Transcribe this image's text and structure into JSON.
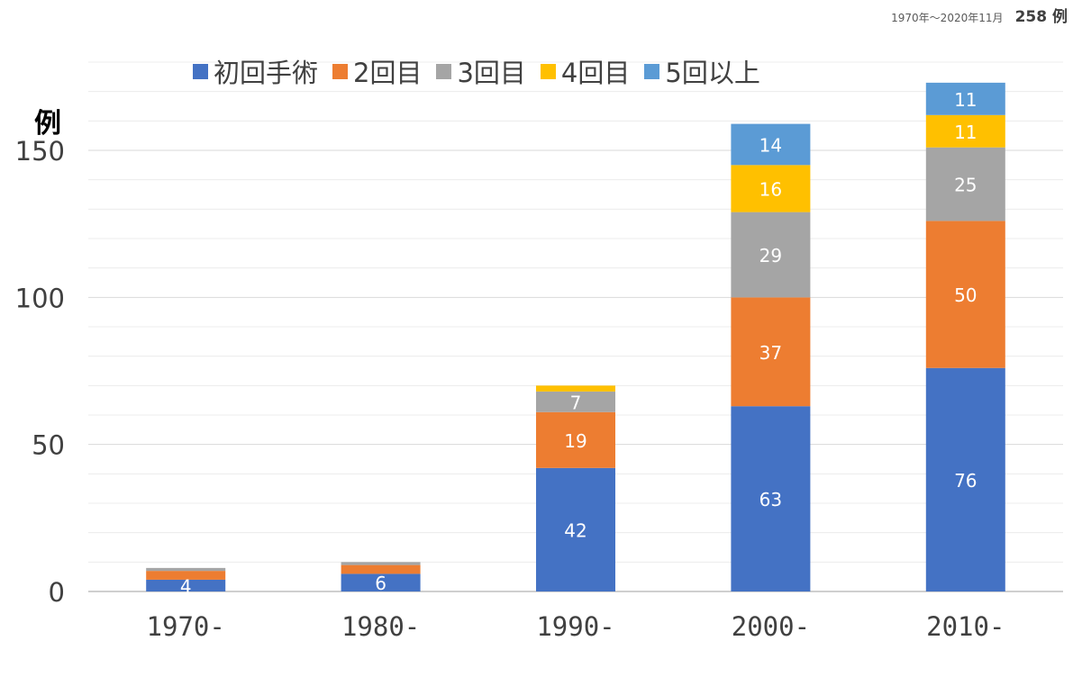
{
  "header": {
    "range": "1970年〜2020年11月",
    "total": "258 例"
  },
  "chart_data": {
    "type": "bar",
    "stacked": true,
    "categories": [
      "1970-",
      "1980-",
      "1990-",
      "2000-",
      "2010-"
    ],
    "series": [
      {
        "name": "初回手術",
        "color": "#4472C4",
        "values": [
          4,
          6,
          42,
          63,
          76
        ]
      },
      {
        "name": "2回目",
        "color": "#ED7D31",
        "values": [
          3,
          3,
          19,
          37,
          50
        ]
      },
      {
        "name": "3回目",
        "color": "#A5A5A5",
        "values": [
          1,
          1,
          7,
          29,
          25
        ]
      },
      {
        "name": "4回目",
        "color": "#FFC000",
        "values": [
          0,
          0,
          2,
          16,
          11
        ]
      },
      {
        "name": "5回以上",
        "color": "#5B9BD5",
        "values": [
          0,
          0,
          0,
          14,
          11
        ]
      }
    ],
    "data_labels": [
      [
        "4",
        "",
        "",
        "",
        ""
      ],
      [
        "6",
        "",
        "",
        "",
        ""
      ],
      [
        "42",
        "19",
        "7",
        "",
        ""
      ],
      [
        "63",
        "37",
        "29",
        "16",
        "14"
      ],
      [
        "76",
        "50",
        "25",
        "11",
        "11"
      ]
    ],
    "ylabel": "例",
    "ylim": [
      0,
      180
    ],
    "yticks": [
      "0",
      "50",
      "100",
      "150"
    ],
    "ytick_values": [
      0,
      50,
      100,
      150
    ],
    "grid": true,
    "legend": "top"
  }
}
